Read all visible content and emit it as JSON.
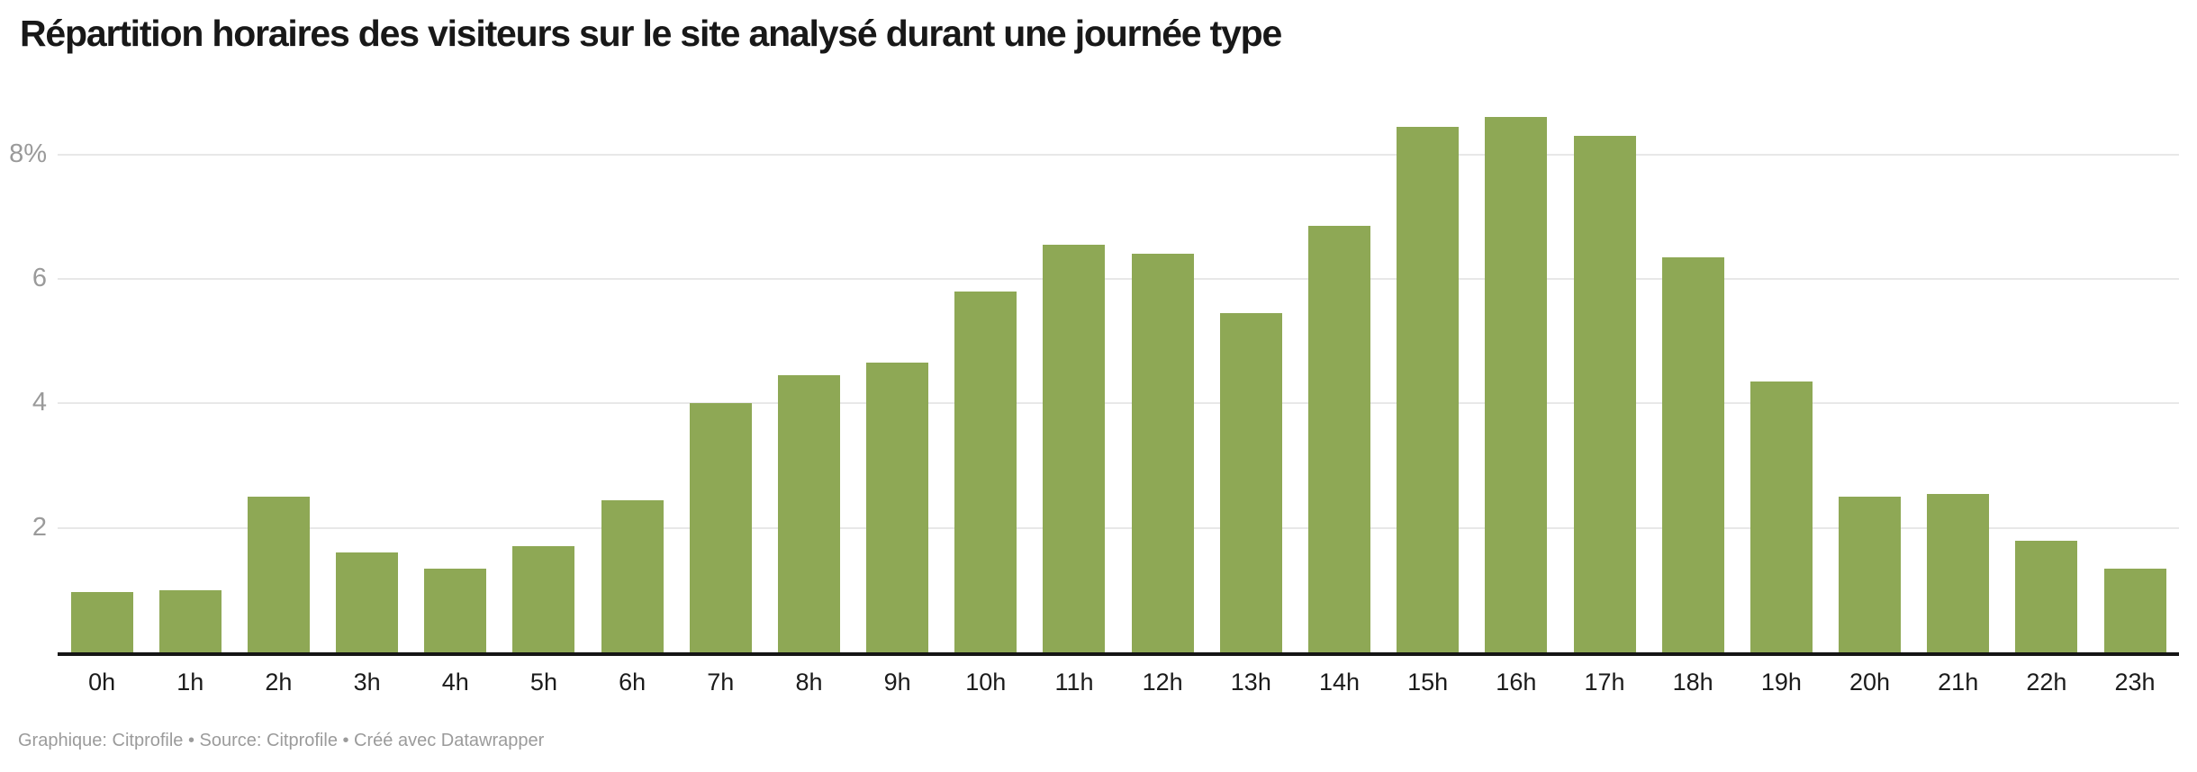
{
  "title": "Répartition horaires des visiteurs sur le site analysé durant une journée type",
  "footer": "Graphique: Citprofile • Source: Citprofile • Créé avec Datawrapper",
  "colors": {
    "background": "#FFFFFF",
    "bar": "#8EA855",
    "grid": "#E8E8E8",
    "axis_line": "#151515",
    "title_text": "#181818",
    "y_tick_text": "#9A9A9A",
    "x_label_text": "#1B1B1B",
    "footer_text": "#9B9B9B"
  },
  "y_axis": {
    "ticks": [
      {
        "value": 2,
        "label": "2"
      },
      {
        "value": 4,
        "label": "4"
      },
      {
        "value": 6,
        "label": "6"
      },
      {
        "value": 8,
        "label": "8%"
      }
    ]
  },
  "chart_data": {
    "type": "bar",
    "title": "Répartition horaires des visiteurs sur le site analysé durant une journée type",
    "xlabel": "",
    "ylabel": "",
    "unit": "%",
    "ylim": [
      0,
      8.75
    ],
    "grid": true,
    "legend": false,
    "categories": [
      "0h",
      "1h",
      "2h",
      "3h",
      "4h",
      "5h",
      "6h",
      "7h",
      "8h",
      "9h",
      "10h",
      "11h",
      "12h",
      "13h",
      "14h",
      "15h",
      "16h",
      "17h",
      "18h",
      "19h",
      "20h",
      "21h",
      "22h",
      "23h"
    ],
    "values": [
      0.97,
      1.0,
      2.5,
      1.6,
      1.35,
      1.7,
      2.45,
      4.0,
      4.45,
      4.65,
      5.8,
      6.55,
      6.4,
      5.45,
      6.85,
      8.45,
      8.6,
      8.3,
      6.35,
      4.35,
      2.5,
      2.55,
      1.8,
      1.35
    ]
  }
}
